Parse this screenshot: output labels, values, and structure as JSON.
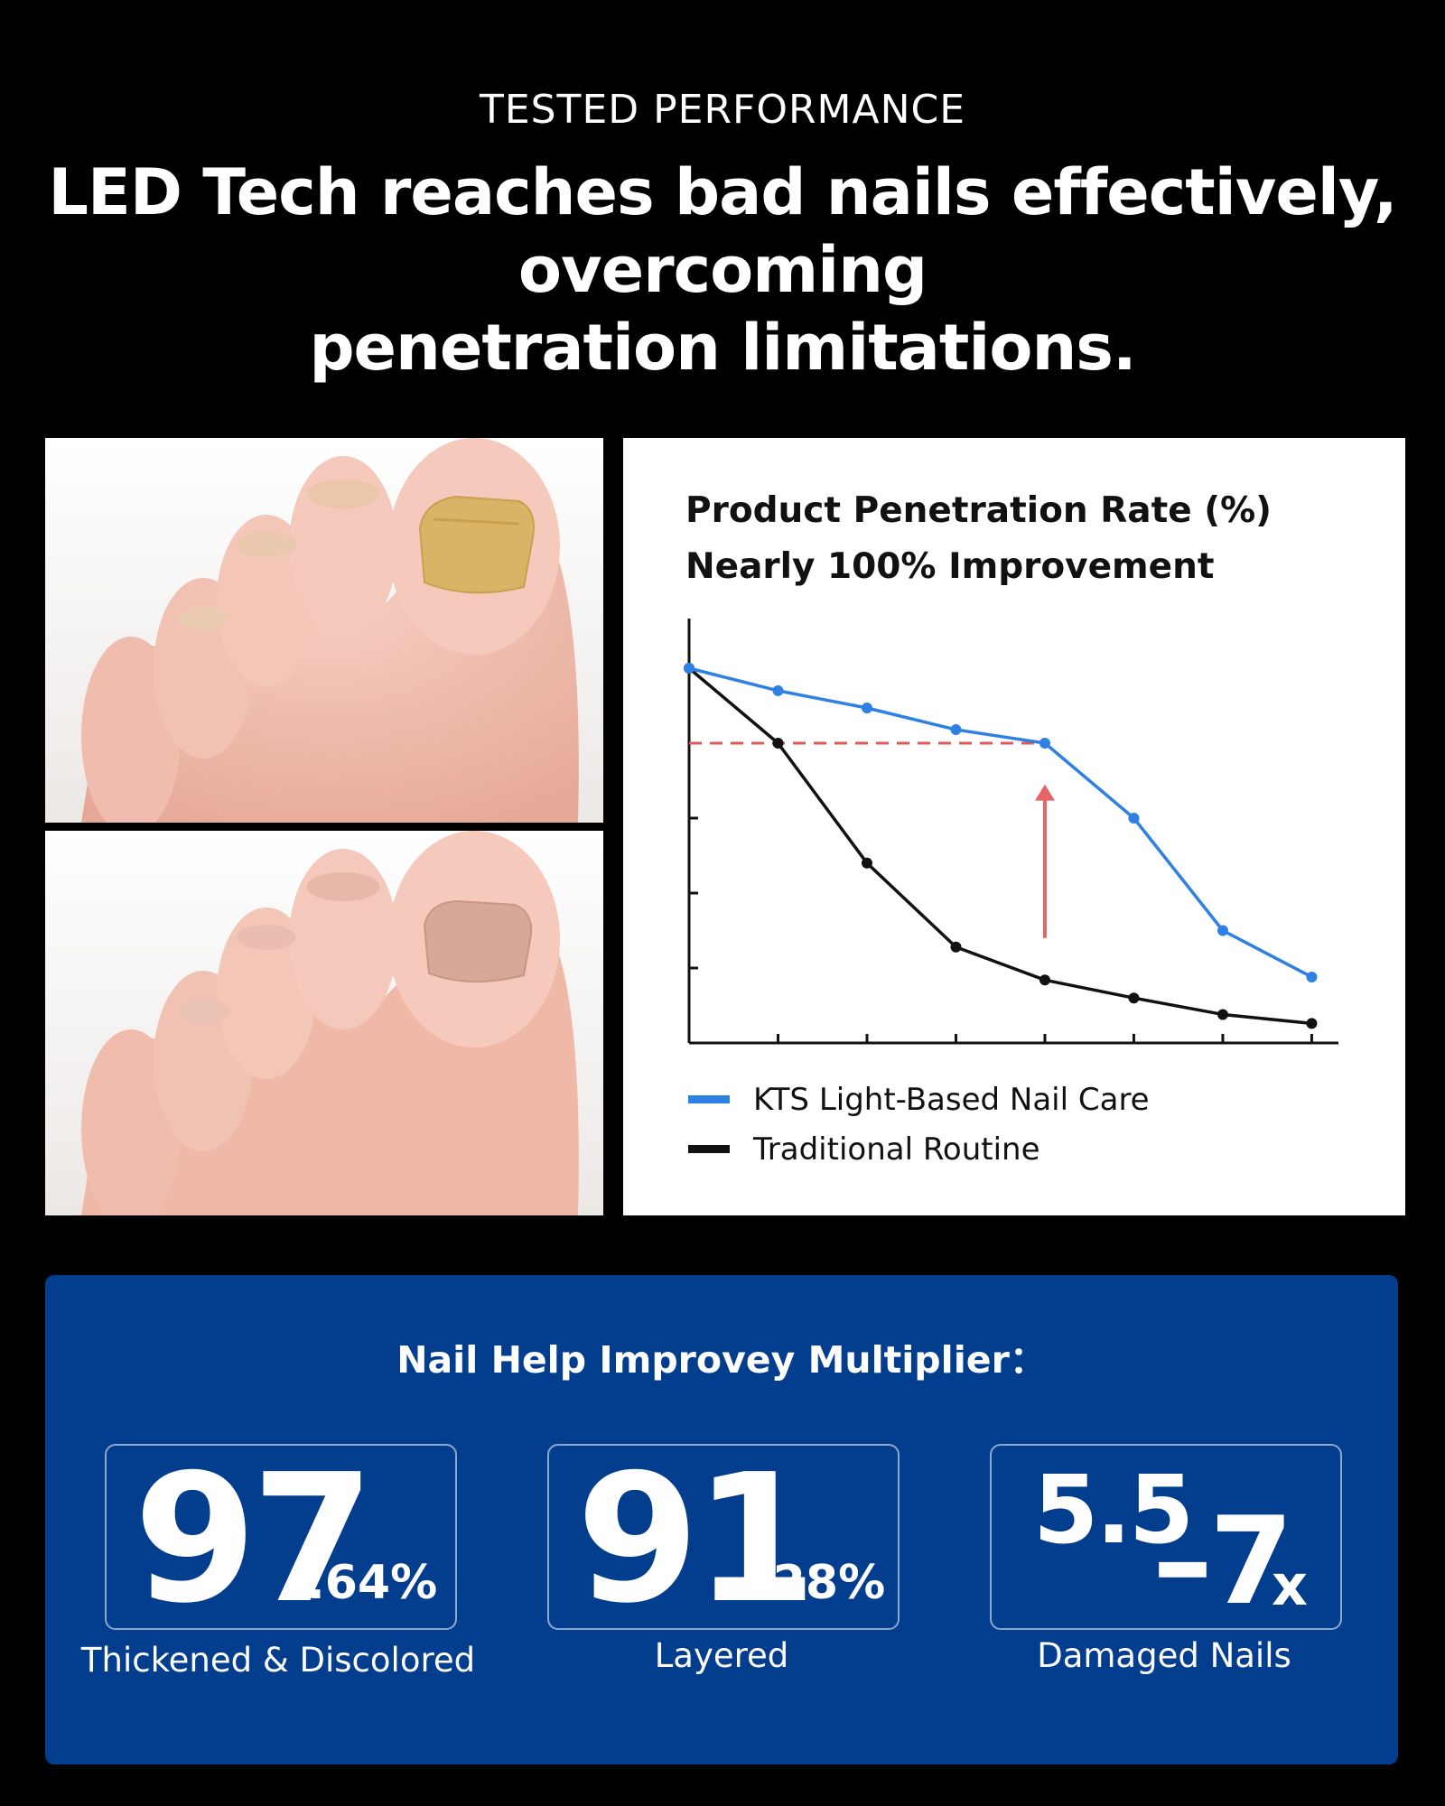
{
  "header": {
    "eyebrow": "TESTED PERFORMANCE",
    "headline_lines": [
      "LED Tech reaches bad nails effectively,",
      "overcoming",
      "penetration limitations."
    ]
  },
  "chart_data": {
    "type": "line",
    "title_lines": [
      "Product Penetration Rate (%)",
      "Nearly 100% Improvement"
    ],
    "xlabel": "",
    "ylabel": "",
    "x": [
      0,
      1,
      2,
      3,
      4,
      5,
      6,
      7
    ],
    "xlim": [
      0,
      7.3
    ],
    "ylim": [
      0,
      5
    ],
    "grid": false,
    "legend_position": "bottom",
    "series": [
      {
        "name": "KTS Light-Based Nail Care",
        "color": "#2f80e3",
        "values": [
          5.0,
          4.7,
          4.47,
          4.18,
          4.0,
          3.0,
          1.5,
          0.88
        ]
      },
      {
        "name": "Traditional Routine",
        "color": "#111111",
        "values": [
          5.0,
          4.0,
          2.4,
          1.28,
          0.84,
          0.6,
          0.38,
          0.26
        ]
      }
    ],
    "reference_line": {
      "y": 4.0,
      "x_from": 0,
      "x_to": 4,
      "color": "#e05a5a",
      "style": "dashed"
    },
    "annotation_arrow": {
      "x": 4,
      "y_from": 1.4,
      "y_to": 3.45,
      "color": "#e86464"
    }
  },
  "stats": {
    "title": "Nail Help Improvey Multiplier：",
    "items": [
      {
        "big": "97",
        "small": ".64%",
        "caption": "Thickened & Discolored"
      },
      {
        "big": "91",
        "small": ".28%",
        "caption": "Layered"
      },
      {
        "big_a": "5.5",
        "big_b": "–7",
        "small": "x",
        "caption": "Damaged Nails"
      }
    ]
  },
  "colors": {
    "background": "#000000",
    "panel": "#033d8e",
    "kts_line": "#2f80e3",
    "traditional_line": "#111111",
    "reference": "#e05a5a"
  }
}
